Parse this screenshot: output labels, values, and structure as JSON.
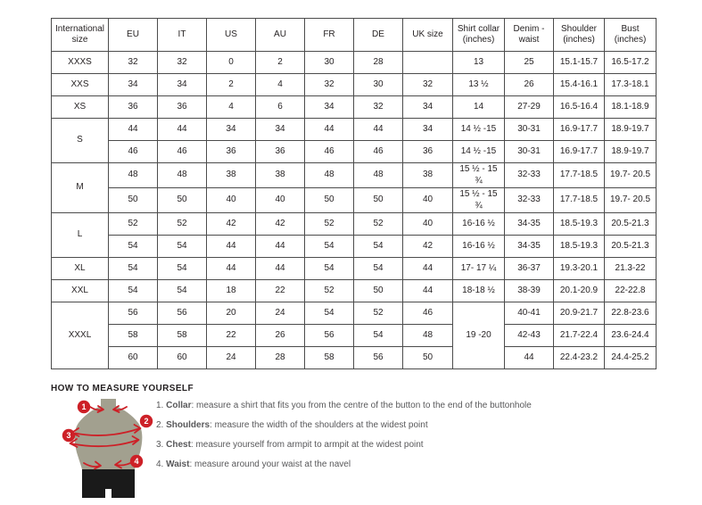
{
  "colors": {
    "accent": "#cd2027",
    "mannequin": "#a2a08f",
    "shorts": "#1a1a1a",
    "table_border": "#4c4c4c",
    "heading_text": "#231f20",
    "body_text": "#58585a"
  },
  "table": {
    "headers": [
      "International size",
      "EU",
      "IT",
      "US",
      "AU",
      "FR",
      "DE",
      "UK size",
      "Shirt collar (inches)",
      "Denim - waist",
      "Shoulder (inches)",
      "Bust (inches)"
    ],
    "rows": [
      [
        "XXXS",
        "32",
        "32",
        "0",
        "2",
        "30",
        "28",
        "",
        "13",
        "25",
        "15.1-15.7",
        "16.5-17.2"
      ],
      [
        "XXS",
        "34",
        "34",
        "2",
        "4",
        "32",
        "30",
        "32",
        "13 ½",
        "26",
        "15.4-16.1",
        "17.3-18.1"
      ],
      [
        "XS",
        "36",
        "36",
        "4",
        "6",
        "34",
        "32",
        "34",
        "14",
        "27-29",
        "16.5-16.4",
        "18.1-18.9"
      ],
      [
        {
          "t": "S",
          "rs": 2
        },
        "44",
        "44",
        "34",
        "34",
        "44",
        "44",
        "34",
        "14 ½ -15",
        "30-31",
        "16.9-17.7",
        "18.9-19.7"
      ],
      [
        null,
        "46",
        "46",
        "36",
        "36",
        "46",
        "46",
        "36",
        "14 ½ -15",
        "30-31",
        "16.9-17.7",
        "18.9-19.7"
      ],
      [
        {
          "t": "M",
          "rs": 2
        },
        "48",
        "48",
        "38",
        "38",
        "48",
        "48",
        "38",
        "15 ½ - 15 ¾",
        "32-33",
        "17.7-18.5",
        "19.7- 20.5"
      ],
      [
        null,
        "50",
        "50",
        "40",
        "40",
        "50",
        "50",
        "40",
        "15 ½ - 15 ¾",
        "32-33",
        "17.7-18.5",
        "19.7- 20.5"
      ],
      [
        {
          "t": "L",
          "rs": 2
        },
        "52",
        "52",
        "42",
        "42",
        "52",
        "52",
        "40",
        "16-16 ½",
        "34-35",
        "18.5-19.3",
        "20.5-21.3"
      ],
      [
        null,
        "54",
        "54",
        "44",
        "44",
        "54",
        "54",
        "42",
        "16-16 ½",
        "34-35",
        "18.5-19.3",
        "20.5-21.3"
      ],
      [
        "XL",
        "54",
        "54",
        "44",
        "44",
        "54",
        "54",
        "44",
        "17- 17 ¼",
        "36-37",
        "19.3-20.1",
        "21.3-22"
      ],
      [
        "XXL",
        "54",
        "54",
        "18",
        "22",
        "52",
        "50",
        "44",
        "18-18 ½",
        "38-39",
        "20.1-20.9",
        "22-22.8"
      ],
      [
        {
          "t": "XXXL",
          "rs": 3
        },
        "56",
        "56",
        "20",
        "24",
        "54",
        "52",
        "46",
        {
          "t": "19 -20",
          "rs": 3
        },
        "40-41",
        "20.9-21.7",
        "22.8-23.6"
      ],
      [
        null,
        "58",
        "58",
        "22",
        "26",
        "56",
        "54",
        "48",
        null,
        "42-43",
        "21.7-22.4",
        "23.6-24.4"
      ],
      [
        null,
        "60",
        "60",
        "24",
        "28",
        "58",
        "56",
        "50",
        null,
        "44",
        "22.4-23.2",
        "24.4-25.2"
      ]
    ]
  },
  "measure": {
    "title": "HOW TO MEASURE YOURSELF",
    "items": [
      {
        "num": "1.",
        "term": "Collar",
        "text": ": measure a shirt that fits you from the centre of the button to the end of the buttonhole"
      },
      {
        "num": "2.",
        "term": "Shoulders",
        "text": ": measure the width of the shoulders at the widest point"
      },
      {
        "num": "3.",
        "term": "Chest",
        "text": ": measure yourself from armpit to armpit at the widest point"
      },
      {
        "num": "4.",
        "term": "Waist",
        "text": ": measure around your waist at the navel"
      }
    ],
    "figure_badges": [
      "1",
      "2",
      "3",
      "4"
    ]
  }
}
